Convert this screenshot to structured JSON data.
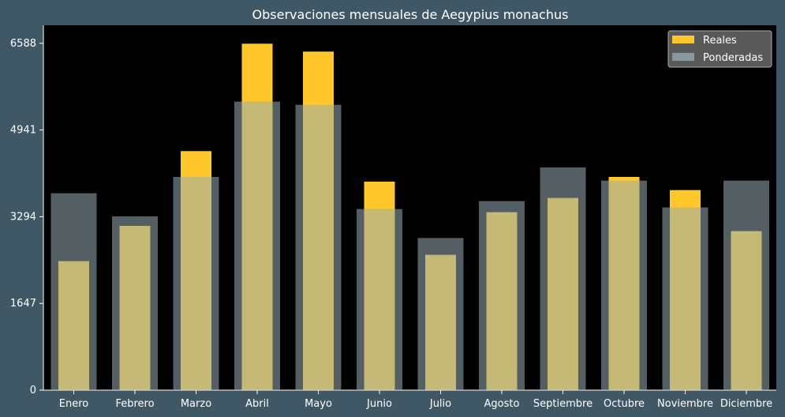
{
  "chart_data": {
    "type": "bar",
    "title": "Observaciones mensuales de Aegypius monachus",
    "xlabel": "",
    "ylabel": "",
    "categories": [
      "Enero",
      "Febrero",
      "Marzo",
      "Abril",
      "Mayo",
      "Junio",
      "Julio",
      "Agosto",
      "Septiembre",
      "Octubre",
      "Noviembre",
      "Diciembre"
    ],
    "series": [
      {
        "name": "Reales",
        "color": "#ffc72c",
        "values": [
          2450,
          3120,
          4540,
          6580,
          6430,
          3960,
          2570,
          3380,
          3650,
          4050,
          3800,
          3020
        ]
      },
      {
        "name": "Ponderadas",
        "color": "#97adb5",
        "values": [
          3740,
          3300,
          4050,
          5480,
          5420,
          3440,
          2890,
          3590,
          4230,
          3980,
          3470,
          3980
        ]
      }
    ],
    "yticks": [
      0,
      1647,
      3294,
      4941,
      6588
    ],
    "ylim": [
      0,
      6930
    ],
    "grid": false,
    "legend_position": "top-right",
    "plot_background": "#000000",
    "page_background": "#405866"
  }
}
